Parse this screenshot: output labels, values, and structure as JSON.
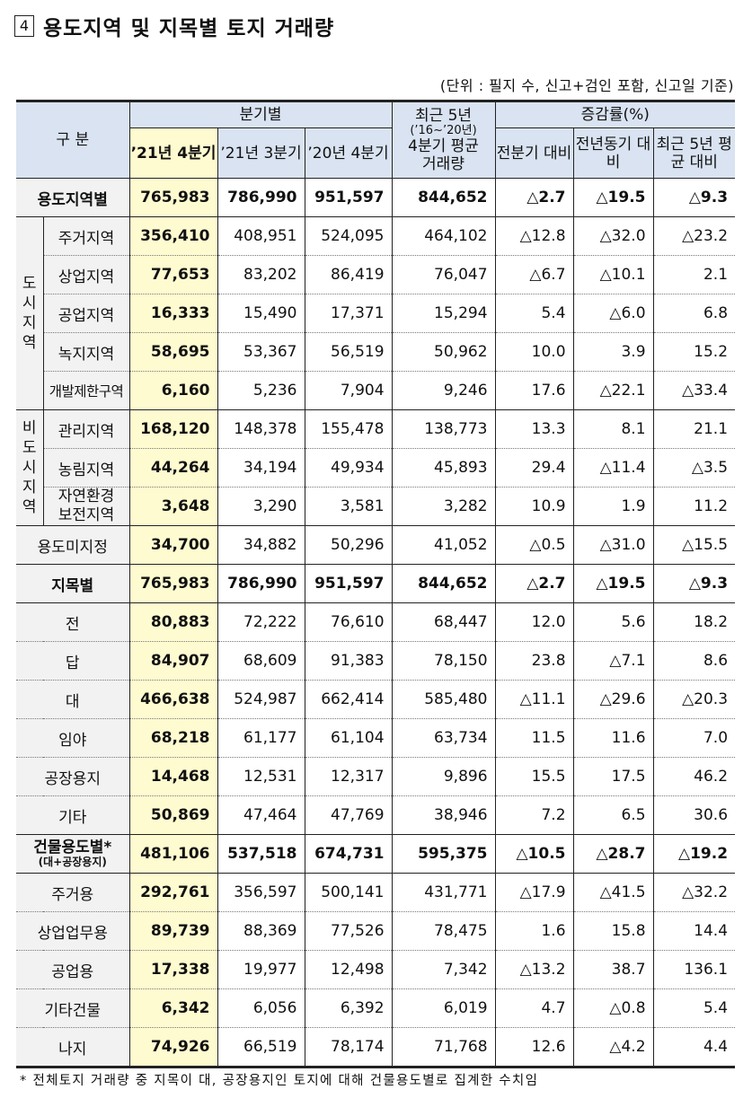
{
  "title": {
    "number": "4",
    "text": "용도지역 및 지목별 토지 거래량"
  },
  "unit_note": "(단위 : 필지 수, 신고+검인 포함, 신고일 기준)",
  "header": {
    "category": "구  분",
    "quarterly": "분기별",
    "cols": [
      "’21년 4분기",
      "’21년 3분기",
      "’20년 4분기"
    ],
    "avg_l1": "최근 5년",
    "avg_l2": "(’16~’20년)",
    "avg_l3": "4분기 평균",
    "avg_l4": "거래량",
    "rate": "증감률(%)",
    "rate_cols": [
      "전분기 대비",
      "전년동기 대비",
      "최근 5년 평균 대비"
    ]
  },
  "groups": {
    "urban": "도시지역",
    "nonurban": "비도시지역"
  },
  "rows": [
    {
      "label": "용도지역별",
      "v": [
        "765,983",
        "786,990",
        "951,597",
        "844,652",
        "△2.7",
        "△19.5",
        "△9.3"
      ]
    },
    {
      "label": "주거지역",
      "v": [
        "356,410",
        "408,951",
        "524,095",
        "464,102",
        "△12.8",
        "△32.0",
        "△23.2"
      ]
    },
    {
      "label": "상업지역",
      "v": [
        "77,653",
        "83,202",
        "86,419",
        "76,047",
        "△6.7",
        "△10.1",
        "2.1"
      ]
    },
    {
      "label": "공업지역",
      "v": [
        "16,333",
        "15,490",
        "17,371",
        "15,294",
        "5.4",
        "△6.0",
        "6.8"
      ]
    },
    {
      "label": "녹지지역",
      "v": [
        "58,695",
        "53,367",
        "56,519",
        "50,962",
        "10.0",
        "3.9",
        "15.2"
      ]
    },
    {
      "label": "개발제한구역",
      "v": [
        "6,160",
        "5,236",
        "7,904",
        "9,246",
        "17.6",
        "△22.1",
        "△33.4"
      ]
    },
    {
      "label": "관리지역",
      "v": [
        "168,120",
        "148,378",
        "155,478",
        "138,773",
        "13.3",
        "8.1",
        "21.1"
      ]
    },
    {
      "label": "농림지역",
      "v": [
        "44,264",
        "34,194",
        "49,934",
        "45,893",
        "29.4",
        "△11.4",
        "△3.5"
      ]
    },
    {
      "label": "자연환경 보전지역",
      "v": [
        "3,648",
        "3,290",
        "3,581",
        "3,282",
        "10.9",
        "1.9",
        "11.2"
      ]
    },
    {
      "label": "용도미지정",
      "v": [
        "34,700",
        "34,882",
        "50,296",
        "41,052",
        "△0.5",
        "△31.0",
        "△15.5"
      ]
    },
    {
      "label": "지목별",
      "v": [
        "765,983",
        "786,990",
        "951,597",
        "844,652",
        "△2.7",
        "△19.5",
        "△9.3"
      ]
    },
    {
      "label": "전",
      "v": [
        "80,883",
        "72,222",
        "76,610",
        "68,447",
        "12.0",
        "5.6",
        "18.2"
      ]
    },
    {
      "label": "답",
      "v": [
        "84,907",
        "68,609",
        "91,383",
        "78,150",
        "23.8",
        "△7.1",
        "8.6"
      ]
    },
    {
      "label": "대",
      "v": [
        "466,638",
        "524,987",
        "662,414",
        "585,480",
        "△11.1",
        "△29.6",
        "△20.3"
      ]
    },
    {
      "label": "임야",
      "v": [
        "68,218",
        "61,177",
        "61,104",
        "63,734",
        "11.5",
        "11.6",
        "7.0"
      ]
    },
    {
      "label": "공장용지",
      "v": [
        "14,468",
        "12,531",
        "12,317",
        "9,896",
        "15.5",
        "17.5",
        "46.2"
      ]
    },
    {
      "label": "기타",
      "v": [
        "50,869",
        "47,464",
        "47,769",
        "38,946",
        "7.2",
        "6.5",
        "30.6"
      ]
    },
    {
      "label": "건물용도별*",
      "sub": "(대+공장용지)",
      "v": [
        "481,106",
        "537,518",
        "674,731",
        "595,375",
        "△10.5",
        "△28.7",
        "△19.2"
      ]
    },
    {
      "label": "주거용",
      "v": [
        "292,761",
        "356,597",
        "500,141",
        "431,771",
        "△17.9",
        "△41.5",
        "△32.2"
      ]
    },
    {
      "label": "상업업무용",
      "v": [
        "89,739",
        "88,369",
        "77,526",
        "78,475",
        "1.6",
        "15.8",
        "14.4"
      ]
    },
    {
      "label": "공업용",
      "v": [
        "17,338",
        "19,977",
        "12,498",
        "7,342",
        "△13.2",
        "38.7",
        "136.1"
      ]
    },
    {
      "label": "기타건물",
      "v": [
        "6,342",
        "6,056",
        "6,392",
        "6,019",
        "4.7",
        "△0.8",
        "5.4"
      ]
    },
    {
      "label": "나지",
      "v": [
        "74,926",
        "66,519",
        "78,174",
        "71,768",
        "12.6",
        "△4.2",
        "4.4"
      ]
    }
  ],
  "footnote": "* 전체토지 거래량 중 지목이 대, 공장용지인 토지에 대해 건물용도별로 집계한 수치임"
}
